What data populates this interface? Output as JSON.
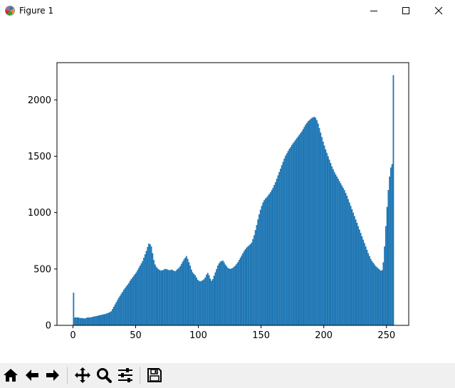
{
  "window": {
    "title": "Figure 1",
    "icons": {
      "app": "matplotlib-icon",
      "minimize": "minimize-icon",
      "maximize": "maximize-icon",
      "close": "close-icon"
    }
  },
  "toolbar": {
    "buttons": [
      {
        "name": "home-button",
        "icon": "home-icon"
      },
      {
        "name": "back-button",
        "icon": "arrow-left-icon"
      },
      {
        "name": "forward-button",
        "icon": "arrow-right-icon"
      },
      {
        "name": "pan-button",
        "icon": "move-icon"
      },
      {
        "name": "zoom-button",
        "icon": "magnifier-icon"
      },
      {
        "name": "subplots-button",
        "icon": "sliders-icon"
      },
      {
        "name": "save-button",
        "icon": "floppy-disk-icon"
      }
    ]
  },
  "chart_data": {
    "type": "bar",
    "title": "",
    "xlabel": "",
    "ylabel": "",
    "xlim": [
      -12.75,
      267.75
    ],
    "ylim": [
      0,
      2330
    ],
    "xticks": [
      0,
      50,
      100,
      150,
      200,
      250
    ],
    "yticks": [
      0,
      500,
      1000,
      1500,
      2000
    ],
    "color": "#1f77b4",
    "grid": false,
    "legend": "none",
    "series": [
      {
        "bin_start": 0,
        "bin_width": 1,
        "values": [
          290,
          70,
          70,
          70,
          70,
          65,
          65,
          65,
          62,
          62,
          65,
          70,
          70,
          70,
          72,
          75,
          78,
          80,
          82,
          85,
          88,
          90,
          93,
          95,
          98,
          100,
          104,
          108,
          112,
          118,
          125,
          145,
          165,
          185,
          205,
          225,
          245,
          262,
          280,
          297,
          315,
          330,
          345,
          360,
          375,
          395,
          410,
          425,
          440,
          455,
          470,
          490,
          510,
          530,
          550,
          570,
          600,
          630,
          660,
          695,
          725,
          720,
          700,
          640,
          580,
          540,
          520,
          505,
          495,
          490,
          485,
          490,
          495,
          500,
          500,
          495,
          490,
          490,
          495,
          490,
          485,
          480,
          490,
          500,
          510,
          525,
          545,
          565,
          585,
          600,
          615,
          590,
          560,
          530,
          495,
          470,
          455,
          445,
          425,
          405,
          395,
          390,
          395,
          400,
          410,
          425,
          450,
          465,
          445,
          415,
          395,
          410,
          440,
          470,
          500,
          530,
          550,
          565,
          570,
          575,
          560,
          540,
          525,
          510,
          505,
          500,
          505,
          510,
          520,
          530,
          545,
          560,
          580,
          600,
          620,
          640,
          660,
          675,
          690,
          700,
          710,
          720,
          735,
          765,
          800,
          845,
          890,
          940,
          985,
          1025,
          1060,
          1090,
          1110,
          1125,
          1135,
          1150,
          1165,
          1180,
          1200,
          1220,
          1245,
          1270,
          1300,
          1330,
          1360,
          1390,
          1420,
          1450,
          1480,
          1505,
          1525,
          1545,
          1565,
          1580,
          1600,
          1615,
          1630,
          1645,
          1660,
          1675,
          1690,
          1705,
          1720,
          1740,
          1760,
          1780,
          1795,
          1810,
          1820,
          1830,
          1840,
          1845,
          1850,
          1840,
          1820,
          1790,
          1750,
          1710,
          1670,
          1630,
          1595,
          1560,
          1530,
          1500,
          1470,
          1440,
          1410,
          1385,
          1360,
          1340,
          1320,
          1300,
          1280,
          1260,
          1240,
          1220,
          1200,
          1175,
          1150,
          1120,
          1090,
          1060,
          1030,
          1000,
          970,
          940,
          910,
          880,
          850,
          820,
          790,
          760,
          730,
          700,
          670,
          640,
          615,
          590,
          570,
          555,
          540,
          525,
          515,
          505,
          495,
          485,
          490,
          560,
          700,
          880,
          1050,
          1200,
          1320,
          1400,
          1430,
          2220
        ]
      }
    ]
  }
}
